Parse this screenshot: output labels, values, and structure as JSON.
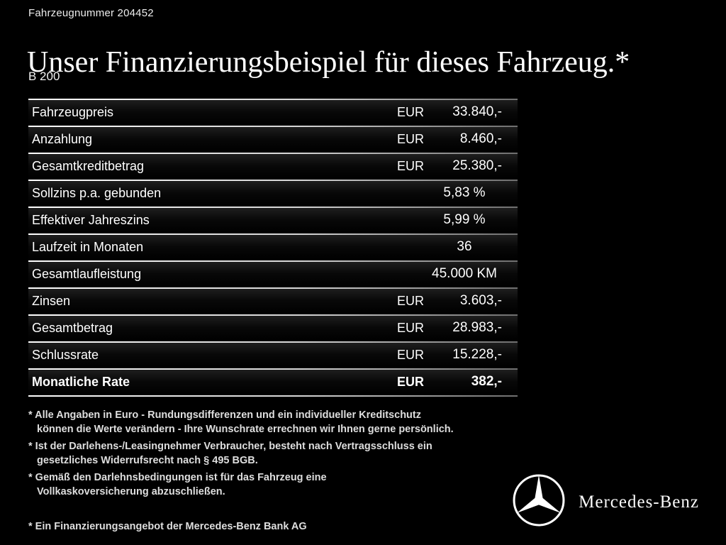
{
  "page": {
    "background": "#000000",
    "text_color": "#ffffff",
    "rule_color_left": "#ffffff",
    "rule_color_right": "#6f6f6f"
  },
  "header": {
    "vehicle_number": "Fahrzeugnummer 204452",
    "title": "Unser Finanzierungsbeispiel für dieses Fahrzeug.*",
    "model": "B 200"
  },
  "finance_table": {
    "rows": [
      {
        "label": "Fahrzeugpreis",
        "currency": "EUR",
        "value": "33.840,-",
        "bold": false
      },
      {
        "label": "Anzahlung",
        "currency": "EUR",
        "value": "8.460,-",
        "bold": false
      },
      {
        "label": "Gesamtkreditbetrag",
        "currency": "EUR",
        "value": "25.380,-",
        "bold": false
      },
      {
        "label": "Sollzins p.a. gebunden",
        "currency": "",
        "value": "5,83 %",
        "bold": false
      },
      {
        "label": "Effektiver Jahreszins",
        "currency": "",
        "value": "5,99 %",
        "bold": false
      },
      {
        "label": "Laufzeit in Monaten",
        "currency": "",
        "value": "36",
        "bold": false
      },
      {
        "label": "Gesamtlaufleistung",
        "currency": "",
        "value": "45.000 KM",
        "bold": false
      },
      {
        "label": "Zinsen",
        "currency": "EUR",
        "value": "3.603,-",
        "bold": false
      },
      {
        "label": "Gesamtbetrag",
        "currency": "EUR",
        "value": "28.983,-",
        "bold": false
      },
      {
        "label": "Schlussrate",
        "currency": "EUR",
        "value": "15.228,-",
        "bold": false
      },
      {
        "label": "Monatliche Rate",
        "currency": "EUR",
        "value": "382,-",
        "bold": true
      }
    ]
  },
  "footnotes": [
    {
      "lines": [
        "* Alle Angaben in Euro - Rundungsdifferenzen und ein individueller Kreditschutz",
        "können die Werte verändern - Ihre Wunschrate errechnen wir Ihnen gerne persönlich."
      ]
    },
    {
      "lines": [
        "* Ist der Darlehens-/Leasingnehmer Verbraucher, besteht nach Vertragsschluss ein",
        "gesetzliches Widerrufsrecht nach § 495 BGB."
      ]
    },
    {
      "lines": [
        "* Gemäß den Darlehnsbedingungen ist für das Fahrzeug eine",
        "Vollkaskoversicherung abzuschließen."
      ]
    }
  ],
  "bank_note": "* Ein Finanzierungsangebot der Mercedes-Benz Bank AG",
  "brand": {
    "name": "Mercedes-Benz"
  }
}
